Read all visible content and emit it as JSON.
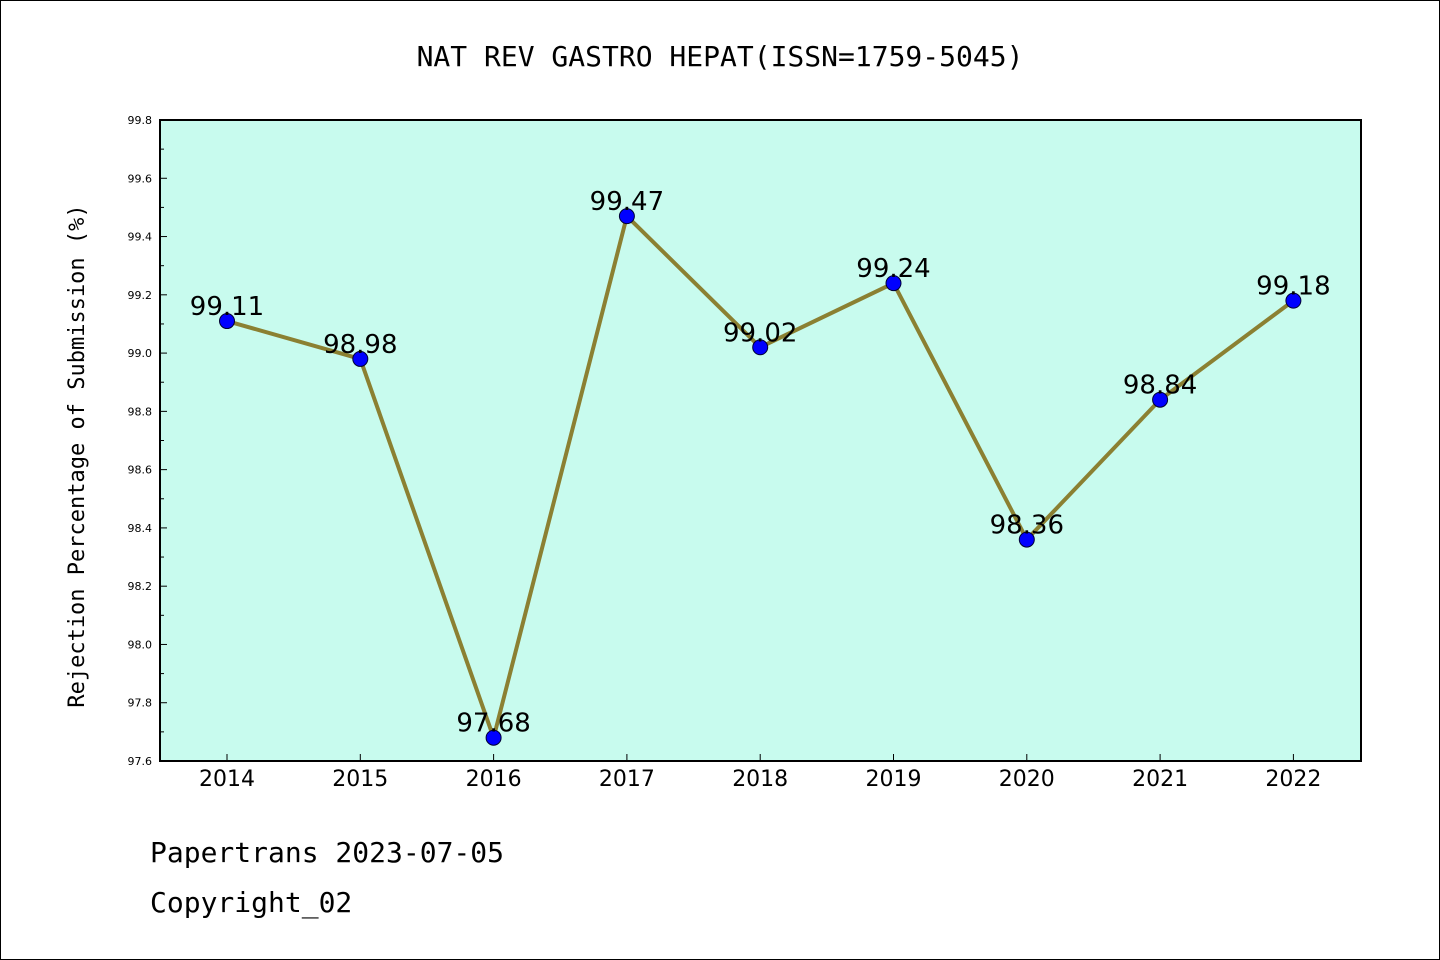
{
  "chart_data": {
    "type": "line",
    "title": "NAT REV GASTRO HEPAT(ISSN=1759-5045)",
    "xlabel": "",
    "ylabel": "Rejection Percentage of Submission (%)",
    "categories": [
      "2014",
      "2015",
      "2016",
      "2017",
      "2018",
      "2019",
      "2020",
      "2021",
      "2022"
    ],
    "series": [
      {
        "values": [
          99.11,
          98.98,
          97.68,
          99.47,
          99.02,
          99.24,
          98.36,
          98.84,
          99.18
        ]
      }
    ],
    "data_labels": [
      "99.11",
      "98.98",
      "97.68",
      "99.47",
      "99.02",
      "99.24",
      "98.36",
      "98.84",
      "99.18"
    ],
    "ylim": [
      97.6,
      99.8
    ],
    "yticks": [
      "97.6",
      "97.8",
      "98.0",
      "98.2",
      "98.4",
      "98.6",
      "98.8",
      "99.0",
      "99.2",
      "99.4",
      "99.6",
      "99.8"
    ],
    "grid": false,
    "legend": "none",
    "colors": {
      "plot_background": "#c8fbee",
      "line": "#8b8032",
      "marker": "#0000ff"
    }
  },
  "footer": {
    "line1": "Papertrans 2023-07-05",
    "line2": "Copyright_02"
  }
}
